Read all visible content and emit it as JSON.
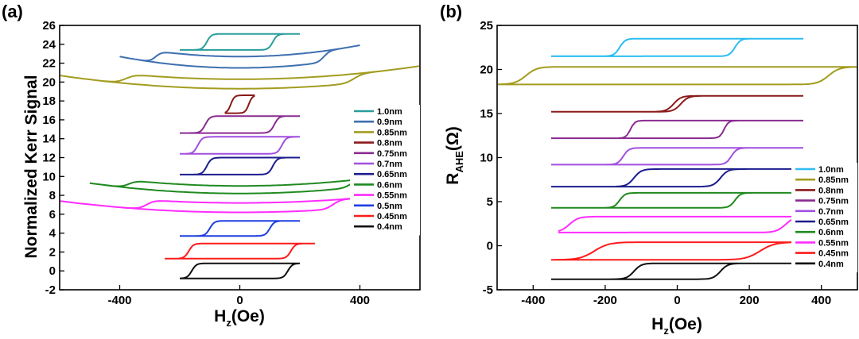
{
  "panels": [
    {
      "label": "(a)",
      "ylabel": "Normalized Kerr Signal",
      "xlabel_main": "H",
      "xlabel_sub": "z",
      "xlabel_rest": "(Oe)"
    },
    {
      "label": "(b)",
      "ylabel_main": "R",
      "ylabel_sub": "AHE",
      "ylabel_rest": "(Ω)",
      "xlabel_main": "H",
      "xlabel_sub": "z",
      "xlabel_rest": "(Oe)"
    }
  ],
  "chart_data": [
    {
      "type": "line",
      "title": "(a)",
      "xlabel": "Hz(Oe)",
      "ylabel": "Normalized Kerr Signal",
      "xlim": [
        -600,
        600
      ],
      "ylim": [
        -2,
        26
      ],
      "xticks": [
        -400,
        0,
        400
      ],
      "yticks": [
        -2,
        0,
        2,
        4,
        6,
        8,
        10,
        12,
        14,
        16,
        18,
        20,
        22,
        24,
        26
      ],
      "legend_position": "right",
      "series": [
        {
          "name": "1.0nm",
          "color": "#2a9d9a",
          "hmax": 200,
          "hc": 110,
          "base": 23.4,
          "amp": 1.7,
          "curv": 0.0,
          "w": 15
        },
        {
          "name": "0.9nm",
          "color": "#3d6fb0",
          "hmax": 400,
          "hc": 280,
          "base": 21.5,
          "amp": 1.2,
          "curv": 1.2,
          "w": 20
        },
        {
          "name": "0.85nm",
          "color": "#a39c1f",
          "hmax": 600,
          "hc": 380,
          "base": 19.3,
          "amp": 1.0,
          "curv": 1.4,
          "w": 30
        },
        {
          "name": "0.8nm",
          "color": "#8b1a1a",
          "hmax": 50,
          "hc": 30,
          "base": 16.7,
          "amp": 1.9,
          "curv": 0.0,
          "w": 12
        },
        {
          "name": "0.75nm",
          "color": "#8a2b90",
          "hmax": 200,
          "hc": 115,
          "base": 14.6,
          "amp": 1.8,
          "curv": 0.0,
          "w": 15
        },
        {
          "name": "0.7nm",
          "color": "#a24fe0",
          "hmax": 200,
          "hc": 140,
          "base": 12.4,
          "amp": 1.8,
          "curv": 0.0,
          "w": 15
        },
        {
          "name": "0.65nm",
          "color": "#1c1c8f",
          "hmax": 200,
          "hc": 110,
          "base": 10.2,
          "amp": 1.8,
          "curv": 0.0,
          "w": 15
        },
        {
          "name": "0.6nm",
          "color": "#1f8a1f",
          "hmax": 500,
          "hc": 370,
          "base": 8.2,
          "amp": 0.8,
          "curv": 1.1,
          "w": 25
        },
        {
          "name": "0.55nm",
          "color": "#ff2bff",
          "hmax": 600,
          "hc": 310,
          "base": 6.2,
          "amp": 1.0,
          "curv": 1.2,
          "w": 25
        },
        {
          "name": "0.5nm",
          "color": "#1d3fe0",
          "hmax": 200,
          "hc": 100,
          "base": 3.7,
          "amp": 1.6,
          "curv": 0.0,
          "w": 15
        },
        {
          "name": "0.45nm",
          "color": "#ff1a1a",
          "hmax": 250,
          "hc": 170,
          "base": 1.3,
          "amp": 1.6,
          "curv": 0.0,
          "w": 15
        },
        {
          "name": "0.4nm",
          "color": "#111111",
          "hmax": 200,
          "hc": 160,
          "base": -0.8,
          "amp": 1.6,
          "curv": 0.0,
          "w": 15
        }
      ]
    },
    {
      "type": "line",
      "title": "(b)",
      "xlabel": "Hz(Oe)",
      "ylabel": "RAHE(Ω)",
      "xlim": [
        -500,
        500
      ],
      "ylim": [
        -5,
        25
      ],
      "xticks": [
        -400,
        -200,
        0,
        200,
        400
      ],
      "yticks": [
        -5,
        0,
        5,
        10,
        15,
        20,
        25
      ],
      "legend_position": "right",
      "series": [
        {
          "name": "1.0nm",
          "color": "#2bbdf0",
          "hmax": 350,
          "hc": 160,
          "base": 21.5,
          "amp": 2.0,
          "curv": 0.0,
          "w": 15
        },
        {
          "name": "0.85nm",
          "color": "#a39c1f",
          "hmax": 500,
          "hc": 420,
          "base": 18.3,
          "amp": 2.0,
          "curv": 0.0,
          "w": 30
        },
        {
          "name": "0.8nm",
          "color": "#8b1a1a",
          "hmax": 350,
          "hc": 10,
          "base": 15.2,
          "amp": 1.8,
          "curv": 0.0,
          "w": 20
        },
        {
          "name": "0.75nm",
          "color": "#8a2b90",
          "hmax": 350,
          "hc": 130,
          "base": 12.2,
          "amp": 2.0,
          "curv": 0.0,
          "w": 12
        },
        {
          "name": "0.7nm",
          "color": "#a24fe0",
          "hmax": 350,
          "hc": 150,
          "base": 9.2,
          "amp": 1.9,
          "curv": 0.0,
          "w": 15
        },
        {
          "name": "0.65nm",
          "color": "#1c1c8f",
          "hmax": 350,
          "hc": 120,
          "base": 6.7,
          "amp": 2.0,
          "curv": 0.0,
          "w": 20
        },
        {
          "name": "0.6nm",
          "color": "#1f8a1f",
          "hmax": 350,
          "hc": 160,
          "base": 4.3,
          "amp": 1.7,
          "curv": 0.0,
          "w": 15
        },
        {
          "name": "0.55nm",
          "color": "#ff2bff",
          "hmax": 330,
          "hc": 300,
          "base": 1.5,
          "amp": 1.8,
          "curv": 0.0,
          "w": 25
        },
        {
          "name": "0.45nm",
          "color": "#ff1a1a",
          "hmax": 350,
          "hc": 230,
          "base": -1.6,
          "amp": 2.0,
          "curv": 0.0,
          "w": 40
        },
        {
          "name": "0.4nm",
          "color": "#111111",
          "hmax": 350,
          "hc": 120,
          "base": -3.8,
          "amp": 1.8,
          "curv": 0.0,
          "w": 20
        }
      ]
    }
  ]
}
